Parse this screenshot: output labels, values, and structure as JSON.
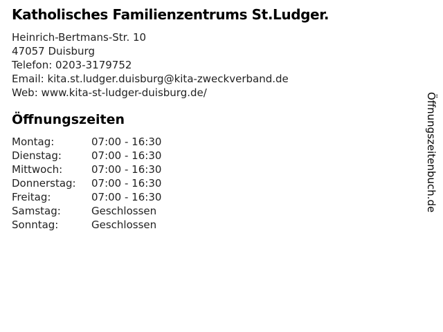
{
  "page": {
    "background": "#ffffff",
    "body_text_color": "#222222",
    "heading_color": "#000000"
  },
  "header": {
    "title": "Katholisches Familienzentrums St.Ludger."
  },
  "contact": {
    "street": "Heinrich-Bertmans-Str. 10",
    "city": "47057 Duisburg",
    "phone_label": "Telefon:",
    "phone_value": "0203-3179752",
    "email_label": "Email:",
    "email_value": "kita.st.ludger.duisburg@kita-zweckverband.de",
    "web_label": "Web:",
    "web_value": "www.kita-st-ludger-duisburg.de/"
  },
  "opening_hours": {
    "heading": "Öffnungszeiten",
    "rows": [
      {
        "day": "Montag:",
        "value": "07:00 - 16:30"
      },
      {
        "day": "Dienstag:",
        "value": "07:00 - 16:30"
      },
      {
        "day": "Mittwoch:",
        "value": "07:00 - 16:30"
      },
      {
        "day": "Donnerstag:",
        "value": "07:00 - 16:30"
      },
      {
        "day": "Freitag:",
        "value": "07:00 - 16:30"
      },
      {
        "day": "Samstag:",
        "value": "Geschlossen"
      },
      {
        "day": "Sonntag:",
        "value": "Geschlossen"
      }
    ]
  },
  "branding": {
    "site_name": "Öffnungszeitenbuch.de"
  }
}
